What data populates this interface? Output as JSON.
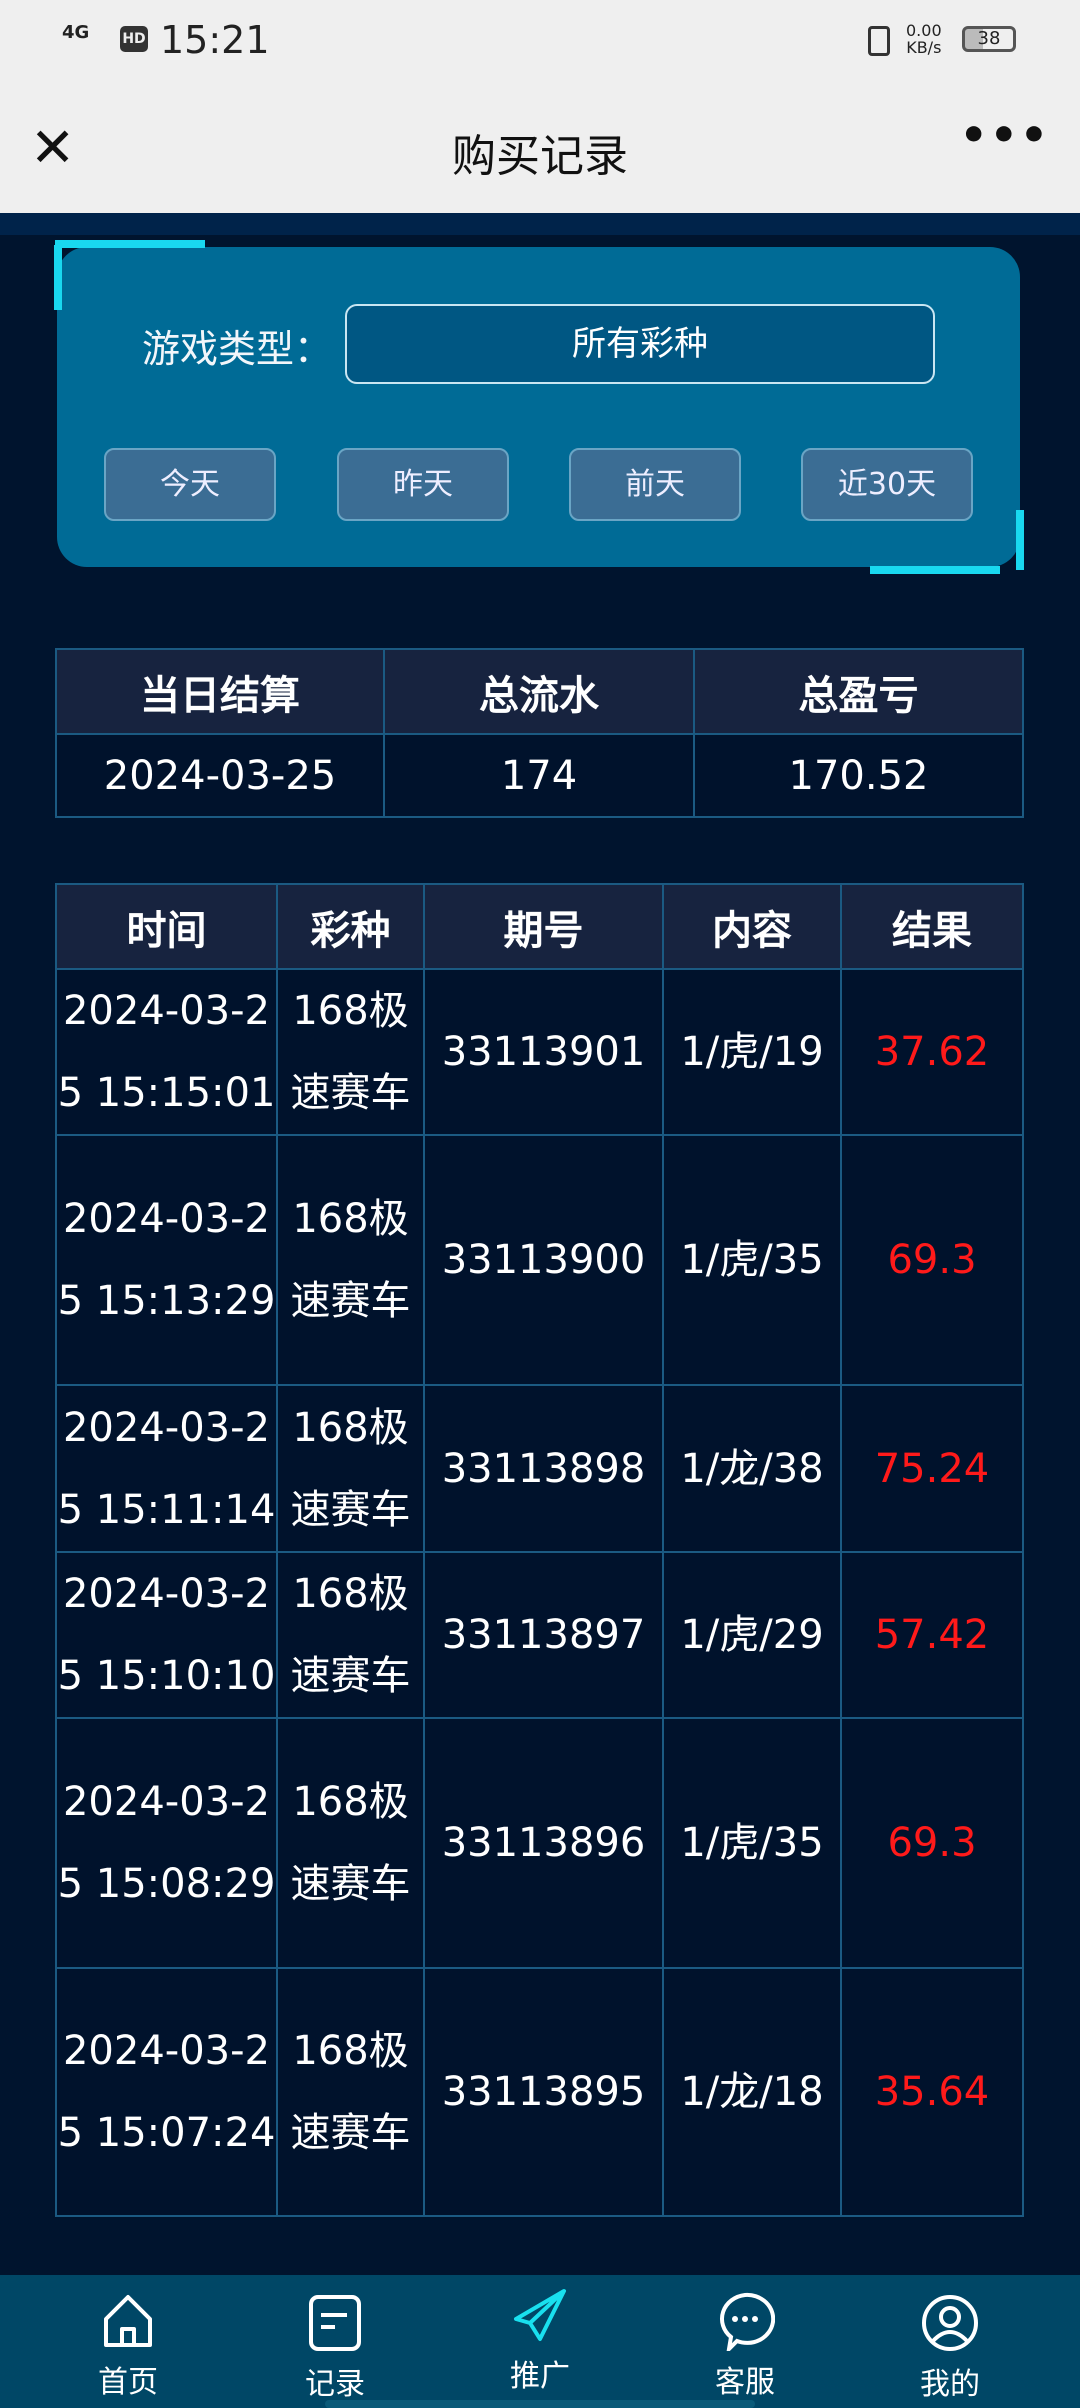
{
  "status_bar": {
    "network": "4G",
    "hd": "HD",
    "time": "15:21",
    "speed": "0.00",
    "speed_unit": "KB/s",
    "battery": "38"
  },
  "header": {
    "title": "购买记录",
    "close_icon": "close-icon",
    "more_icon": "more-icon"
  },
  "filter": {
    "label": "游戏类型：",
    "select_value": "所有彩种",
    "quick_buttons": [
      "今天",
      "昨天",
      "前天",
      "近30天"
    ]
  },
  "summary": {
    "headers": [
      "当日结算",
      "总流水",
      "总盈亏"
    ],
    "row": [
      "2024-03-25",
      "174",
      "170.52"
    ]
  },
  "records": {
    "headers": [
      "时间",
      "彩种",
      "期号",
      "内容",
      "结果"
    ],
    "rows": [
      [
        "2024-03-25 15:15:01",
        "168极速赛车",
        "33113901",
        "1/虎/19",
        "37.62"
      ],
      [
        "2024-03-25 15:13:29",
        "168极速赛车",
        "33113900",
        "1/虎/35",
        "69.3"
      ],
      [
        "2024-03-25 15:11:14",
        "168极速赛车",
        "33113898",
        "1/龙/38",
        "75.24"
      ],
      [
        "2024-03-25 15:10:10",
        "168极速赛车",
        "33113897",
        "1/虎/29",
        "57.42"
      ],
      [
        "2024-03-25 15:08:29",
        "168极速赛车",
        "33113896",
        "1/虎/35",
        "69.3"
      ],
      [
        "2024-03-25 15:07:24",
        "168极速赛车",
        "33113895",
        "1/龙/18",
        "35.64"
      ]
    ]
  },
  "bottom_nav": [
    {
      "label": "首页",
      "icon": "home-icon"
    },
    {
      "label": "记录",
      "icon": "document-icon"
    },
    {
      "label": "推广",
      "icon": "paper-plane-icon",
      "active": true
    },
    {
      "label": "客服",
      "icon": "chat-icon"
    },
    {
      "label": "我的",
      "icon": "user-icon"
    }
  ],
  "colors": {
    "result": "#ff1a1a",
    "panel": "#006b96",
    "accent": "#19d8f0",
    "nav": "#004766"
  }
}
